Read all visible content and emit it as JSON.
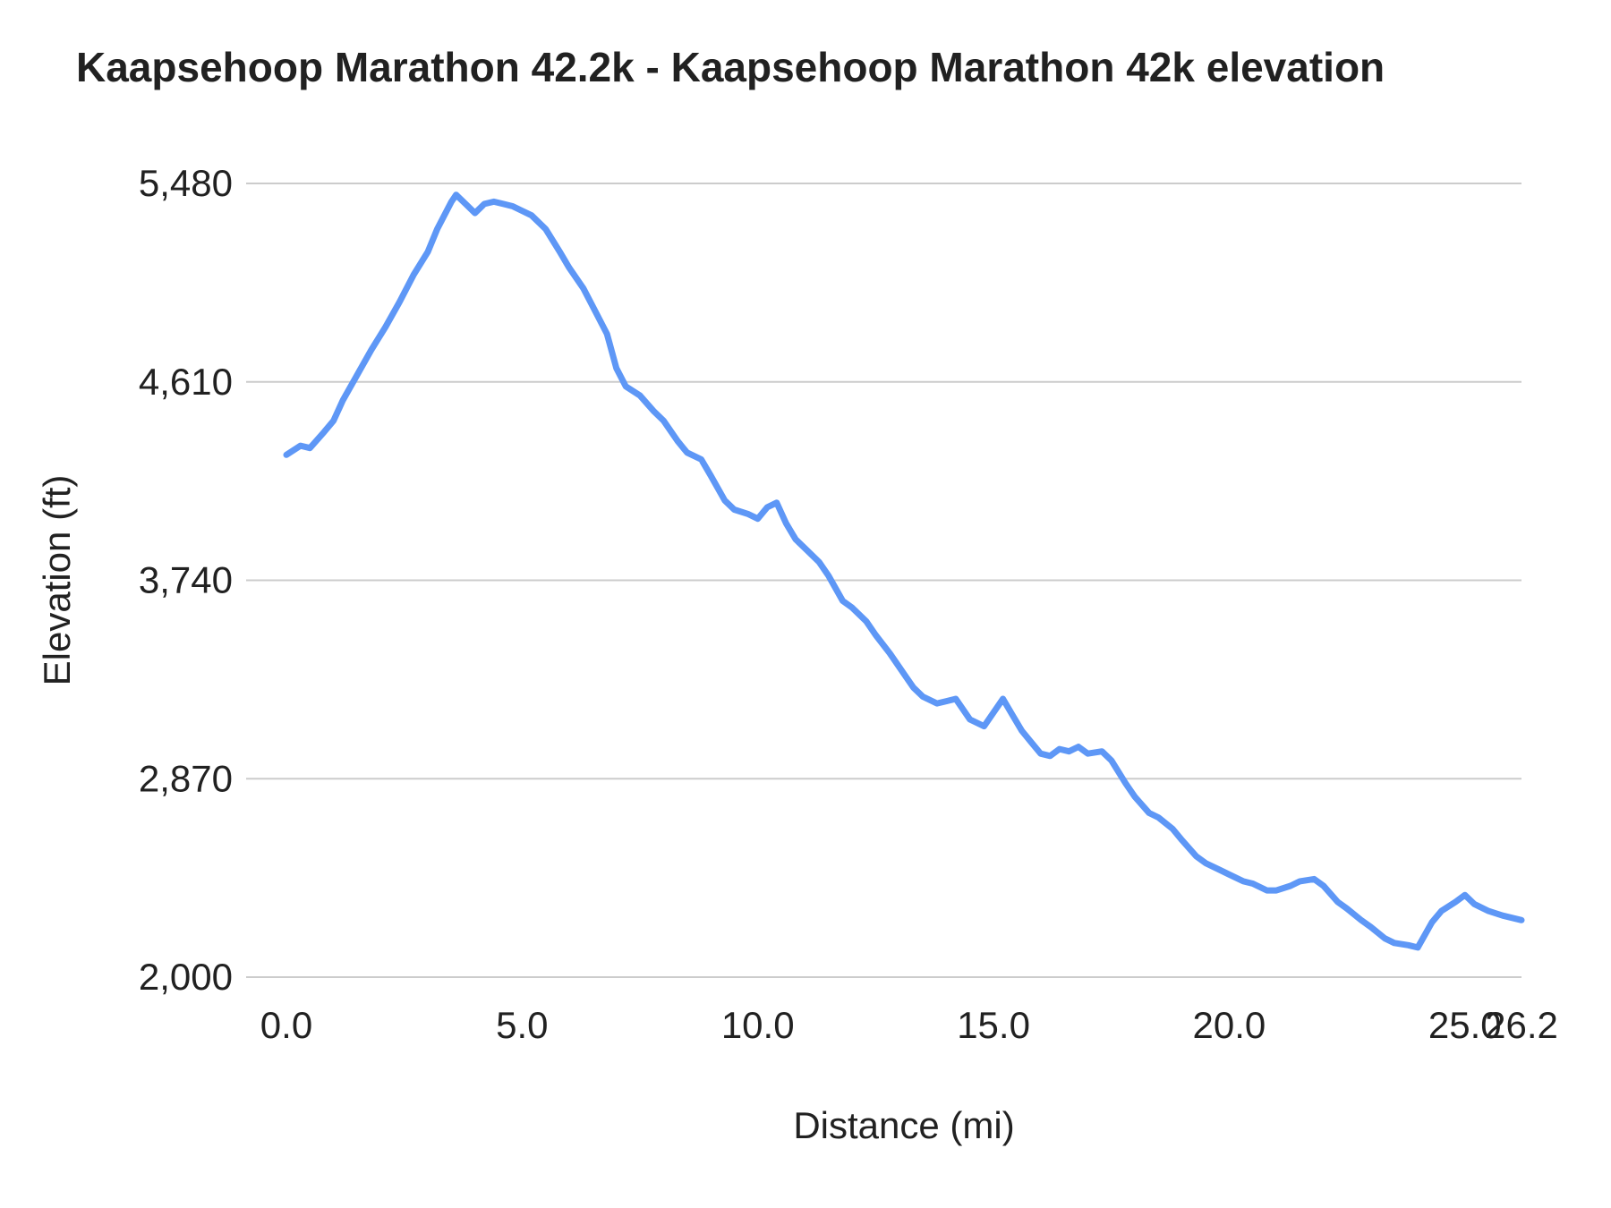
{
  "page": {
    "background": "#ffffff"
  },
  "chart_data": {
    "type": "line",
    "title": "Kaapsehoop Marathon 42.2k - Kaapsehoop Marathon 42k elevation",
    "xlabel": "Distance (mi)",
    "ylabel": "Elevation (ft)",
    "xlim": [
      0,
      26.2
    ],
    "ylim": [
      2000,
      5480
    ],
    "x_ticks": [
      0.0,
      5.0,
      10.0,
      15.0,
      20.0,
      25.0,
      26.2
    ],
    "x_tick_labels": [
      "0.0",
      "5.0",
      "10.0",
      "15.0",
      "20.0",
      "25.0",
      "26.2"
    ],
    "y_ticks": [
      2000,
      2870,
      3740,
      4610,
      5480
    ],
    "y_tick_labels": [
      "2,000",
      "2,870",
      "3,740",
      "4,610",
      "5,480"
    ],
    "grid": "horizontal",
    "legend": "none",
    "line_color": "#5e97f6",
    "line_width": 7,
    "gridline_color": "#cccccc",
    "text_color": "#212121",
    "series": [
      {
        "name": "Kaapsehoop Marathon 42k elevation",
        "points": [
          [
            0.0,
            4290
          ],
          [
            0.3,
            4330
          ],
          [
            0.5,
            4320
          ],
          [
            0.8,
            4390
          ],
          [
            1.0,
            4440
          ],
          [
            1.2,
            4530
          ],
          [
            1.5,
            4640
          ],
          [
            1.8,
            4750
          ],
          [
            2.1,
            4850
          ],
          [
            2.4,
            4960
          ],
          [
            2.7,
            5080
          ],
          [
            3.0,
            5180
          ],
          [
            3.2,
            5280
          ],
          [
            3.5,
            5400
          ],
          [
            3.6,
            5430
          ],
          [
            3.8,
            5390
          ],
          [
            4.0,
            5350
          ],
          [
            4.2,
            5390
          ],
          [
            4.4,
            5400
          ],
          [
            4.6,
            5390
          ],
          [
            4.8,
            5380
          ],
          [
            5.0,
            5360
          ],
          [
            5.2,
            5340
          ],
          [
            5.5,
            5280
          ],
          [
            5.8,
            5180
          ],
          [
            6.0,
            5110
          ],
          [
            6.3,
            5020
          ],
          [
            6.5,
            4940
          ],
          [
            6.8,
            4820
          ],
          [
            7.0,
            4670
          ],
          [
            7.2,
            4590
          ],
          [
            7.5,
            4550
          ],
          [
            7.8,
            4480
          ],
          [
            8.0,
            4440
          ],
          [
            8.3,
            4350
          ],
          [
            8.5,
            4300
          ],
          [
            8.8,
            4270
          ],
          [
            9.0,
            4200
          ],
          [
            9.3,
            4090
          ],
          [
            9.5,
            4050
          ],
          [
            9.8,
            4030
          ],
          [
            10.0,
            4010
          ],
          [
            10.2,
            4060
          ],
          [
            10.4,
            4080
          ],
          [
            10.6,
            3990
          ],
          [
            10.8,
            3920
          ],
          [
            11.0,
            3880
          ],
          [
            11.3,
            3820
          ],
          [
            11.5,
            3760
          ],
          [
            11.8,
            3650
          ],
          [
            12.0,
            3620
          ],
          [
            12.3,
            3560
          ],
          [
            12.5,
            3500
          ],
          [
            12.8,
            3420
          ],
          [
            13.0,
            3360
          ],
          [
            13.3,
            3270
          ],
          [
            13.5,
            3230
          ],
          [
            13.8,
            3200
          ],
          [
            14.0,
            3210
          ],
          [
            14.2,
            3220
          ],
          [
            14.5,
            3130
          ],
          [
            14.8,
            3100
          ],
          [
            15.0,
            3160
          ],
          [
            15.2,
            3220
          ],
          [
            15.4,
            3150
          ],
          [
            15.6,
            3080
          ],
          [
            15.8,
            3030
          ],
          [
            16.0,
            2980
          ],
          [
            16.2,
            2970
          ],
          [
            16.4,
            3000
          ],
          [
            16.6,
            2990
          ],
          [
            16.8,
            3010
          ],
          [
            17.0,
            2980
          ],
          [
            17.3,
            2990
          ],
          [
            17.5,
            2950
          ],
          [
            17.8,
            2850
          ],
          [
            18.0,
            2790
          ],
          [
            18.3,
            2720
          ],
          [
            18.5,
            2700
          ],
          [
            18.8,
            2650
          ],
          [
            19.0,
            2600
          ],
          [
            19.3,
            2530
          ],
          [
            19.5,
            2500
          ],
          [
            19.8,
            2470
          ],
          [
            20.0,
            2450
          ],
          [
            20.3,
            2420
          ],
          [
            20.5,
            2410
          ],
          [
            20.8,
            2380
          ],
          [
            21.0,
            2380
          ],
          [
            21.3,
            2400
          ],
          [
            21.5,
            2420
          ],
          [
            21.8,
            2430
          ],
          [
            22.0,
            2400
          ],
          [
            22.3,
            2330
          ],
          [
            22.5,
            2300
          ],
          [
            22.8,
            2250
          ],
          [
            23.0,
            2220
          ],
          [
            23.3,
            2170
          ],
          [
            23.5,
            2150
          ],
          [
            23.8,
            2140
          ],
          [
            24.0,
            2130
          ],
          [
            24.3,
            2240
          ],
          [
            24.5,
            2290
          ],
          [
            24.8,
            2330
          ],
          [
            25.0,
            2360
          ],
          [
            25.2,
            2320
          ],
          [
            25.5,
            2290
          ],
          [
            25.8,
            2270
          ],
          [
            26.2,
            2250
          ]
        ]
      }
    ]
  }
}
